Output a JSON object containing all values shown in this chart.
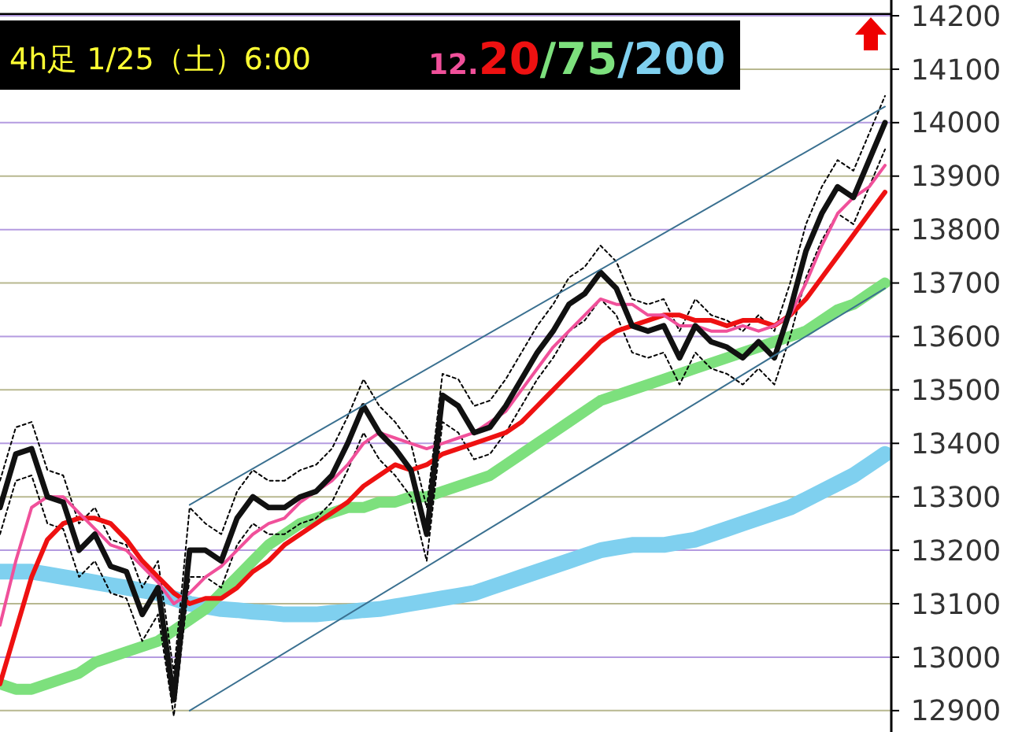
{
  "chart_data": {
    "type": "line",
    "title": "4h足 1/25（土）6:00",
    "categories": [
      null,
      null,
      null,
      null,
      null,
      null,
      null,
      null,
      null,
      null,
      null,
      null,
      null,
      null,
      null,
      null,
      null,
      null,
      null,
      null,
      null,
      null,
      null,
      null,
      null,
      null,
      null,
      null,
      null,
      null,
      null,
      null,
      null,
      null,
      null,
      null,
      null,
      null,
      null,
      null,
      null,
      null,
      null,
      null,
      null,
      null,
      null,
      null,
      null,
      null,
      null,
      null,
      null,
      null,
      null,
      null,
      null
    ],
    "ylim": [
      12860,
      14200
    ],
    "yticks": [
      12900,
      13000,
      13100,
      13200,
      13300,
      13400,
      13500,
      13600,
      13700,
      13800,
      13900,
      14000,
      14100,
      14200
    ],
    "grid": "y",
    "legend": "top",
    "marker": "none",
    "line_style": "solid",
    "series": [
      {
        "name": "/200",
        "color": "#7fd0ef",
        "values": [
          13160,
          13160,
          13160,
          13155,
          13150,
          13145,
          13140,
          13135,
          13130,
          13125,
          13120,
          13110,
          13100,
          13095,
          13090,
          13088,
          13085,
          13083,
          13080,
          13080,
          13080,
          13083,
          13085,
          13088,
          13090,
          13095,
          13100,
          13105,
          13110,
          13115,
          13120,
          13130,
          13140,
          13150,
          13160,
          13170,
          13180,
          13190,
          13200,
          13205,
          13210,
          13210,
          13210,
          13215,
          13220,
          13230,
          13240,
          13250,
          13260,
          13270,
          13280,
          13295,
          13310,
          13325,
          13340,
          13360,
          13380
        ]
      },
      {
        "name": "/75",
        "color": "#7de07d",
        "values": [
          12950,
          12940,
          12940,
          12950,
          12960,
          12970,
          12990,
          13000,
          13010,
          13020,
          13030,
          13050,
          13070,
          13090,
          13120,
          13150,
          13180,
          13210,
          13230,
          13250,
          13260,
          13270,
          13280,
          13280,
          13290,
          13290,
          13300,
          13300,
          13310,
          13320,
          13330,
          13340,
          13360,
          13380,
          13400,
          13420,
          13440,
          13460,
          13480,
          13490,
          13500,
          13510,
          13520,
          13530,
          13540,
          13550,
          13560,
          13570,
          13580,
          13590,
          13600,
          13610,
          13630,
          13650,
          13660,
          13680,
          13700
        ]
      },
      {
        "color": "#000000",
        "line_style": "dotted",
        "values": [
          13330,
          13430,
          13440,
          13350,
          13340,
          13250,
          13280,
          13220,
          13210,
          13130,
          13180,
          12970,
          13280,
          13250,
          13230,
          13310,
          13350,
          13330,
          13330,
          13350,
          13360,
          13390,
          13450,
          13520,
          13470,
          13440,
          13400,
          13280,
          13530,
          13520,
          13470,
          13480,
          13520,
          13570,
          13620,
          13660,
          13710,
          13730,
          13770,
          13740,
          13670,
          13660,
          13670,
          13610,
          13670,
          13640,
          13630,
          13610,
          13640,
          13610,
          13700,
          13810,
          13880,
          13930,
          13910,
          13980,
          14050
        ]
      },
      {
        "color": "#000000",
        "line_style": "dotted",
        "values": [
          13230,
          13330,
          13340,
          13250,
          13240,
          13150,
          13180,
          13120,
          13110,
          13030,
          13080,
          12890,
          13150,
          13150,
          13130,
          13210,
          13250,
          13230,
          13230,
          13250,
          13260,
          13290,
          13350,
          13420,
          13370,
          13340,
          13300,
          13180,
          13440,
          13420,
          13370,
          13380,
          13420,
          13470,
          13520,
          13560,
          13610,
          13630,
          13670,
          13640,
          13570,
          13560,
          13570,
          13510,
          13570,
          13540,
          13530,
          13510,
          13540,
          13510,
          13600,
          13710,
          13780,
          13830,
          13810,
          13880,
          13950
        ]
      },
      {
        "name": "20",
        "color": "#ee1111",
        "values": [
          12950,
          13050,
          13150,
          13220,
          13250,
          13260,
          13260,
          13250,
          13220,
          13180,
          13150,
          13120,
          13100,
          13110,
          13110,
          13130,
          13160,
          13180,
          13210,
          13230,
          13250,
          13270,
          13290,
          13320,
          13340,
          13360,
          13350,
          13360,
          13380,
          13390,
          13400,
          13410,
          13420,
          13440,
          13470,
          13500,
          13530,
          13560,
          13590,
          13610,
          13620,
          13630,
          13640,
          13640,
          13630,
          13630,
          13620,
          13630,
          13630,
          13620,
          13640,
          13670,
          13710,
          13750,
          13790,
          13830,
          13870
        ]
      },
      {
        "name": "12.",
        "color": "#f0509a",
        "values": [
          13060,
          13180,
          13280,
          13300,
          13300,
          13270,
          13240,
          13210,
          13200,
          13170,
          13140,
          13100,
          13120,
          13150,
          13170,
          13200,
          13230,
          13250,
          13260,
          13290,
          13310,
          13330,
          13360,
          13400,
          13420,
          13410,
          13400,
          13390,
          13400,
          13410,
          13420,
          13440,
          13460,
          13500,
          13540,
          13580,
          13610,
          13640,
          13670,
          13660,
          13660,
          13640,
          13640,
          13620,
          13620,
          13610,
          13610,
          13620,
          13610,
          13620,
          13640,
          13700,
          13770,
          13830,
          13860,
          13880,
          13920
        ]
      },
      {
        "color": "#111111",
        "values": [
          13280,
          13380,
          13390,
          13300,
          13290,
          13200,
          13230,
          13170,
          13160,
          13080,
          13130,
          12920,
          13200,
          13200,
          13180,
          13260,
          13300,
          13280,
          13280,
          13300,
          13310,
          13340,
          13400,
          13470,
          13420,
          13390,
          13350,
          13230,
          13490,
          13470,
          13420,
          13430,
          13470,
          13520,
          13570,
          13610,
          13660,
          13680,
          13720,
          13690,
          13620,
          13610,
          13620,
          13560,
          13620,
          13590,
          13580,
          13560,
          13590,
          13560,
          13650,
          13760,
          13830,
          13880,
          13860,
          13930,
          14000
        ]
      },
      {
        "color": "#3a7090",
        "values": [
          null,
          null,
          null,
          null,
          null,
          null,
          null,
          null,
          null,
          null,
          null,
          null,
          13285,
          null,
          null,
          null,
          null,
          null,
          null,
          null,
          null,
          null,
          null,
          null,
          null,
          null,
          null,
          null,
          null,
          null,
          null,
          null,
          null,
          null,
          null,
          null,
          null,
          null,
          null,
          null,
          null,
          null,
          null,
          null,
          null,
          null,
          null,
          null,
          null,
          null,
          null,
          null,
          null,
          null,
          null,
          null,
          14030
        ]
      },
      {
        "color": "#3a7090",
        "values": [
          null,
          null,
          null,
          null,
          null,
          null,
          null,
          null,
          null,
          null,
          null,
          null,
          12900,
          null,
          null,
          null,
          null,
          null,
          null,
          null,
          null,
          null,
          null,
          null,
          null,
          null,
          null,
          null,
          null,
          null,
          null,
          null,
          null,
          null,
          null,
          null,
          null,
          null,
          null,
          null,
          null,
          null,
          null,
          null,
          null,
          null,
          null,
          null,
          null,
          null,
          null,
          null,
          null,
          null,
          null,
          null,
          13690
        ]
      }
    ]
  }
}
